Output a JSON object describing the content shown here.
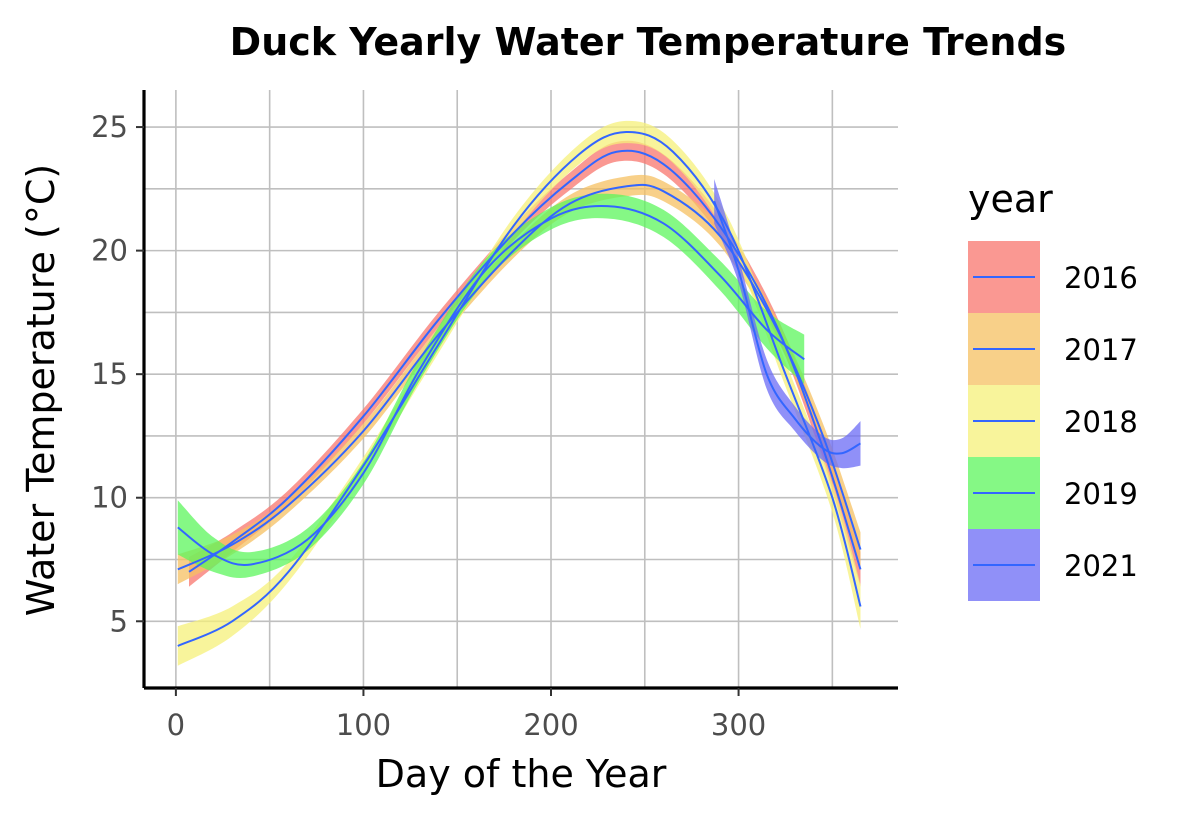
{
  "chart_data": {
    "type": "line",
    "title": "Duck Yearly Water Temperature Trends",
    "xlabel": "Day of the Year",
    "ylabel": "Water Temperature (°C)",
    "xlim": [
      -17,
      385
    ],
    "ylim": [
      2.3,
      26.5
    ],
    "x_ticks": [
      0,
      100,
      200,
      300
    ],
    "y_ticks": [
      5,
      10,
      15,
      20,
      25
    ],
    "grid": true,
    "legend_title": "year",
    "legend_position": "right",
    "line_color": "#3366ff",
    "series": [
      {
        "name": "2016",
        "fill": "#f8766d",
        "x": [
          7,
          30,
          60,
          100,
          140,
          180,
          210,
          235,
          260,
          290,
          320,
          345,
          365
        ],
        "y": [
          7.0,
          8.2,
          10.0,
          13.3,
          17.2,
          20.7,
          22.8,
          24.0,
          23.5,
          21.0,
          17.0,
          12.0,
          7.1
        ],
        "band": [
          0.6,
          0.4,
          0.3,
          0.3,
          0.3,
          0.3,
          0.35,
          0.4,
          0.4,
          0.4,
          0.4,
          0.5,
          0.7
        ]
      },
      {
        "name": "2017",
        "fill": "#f5c061",
        "x": [
          1,
          30,
          60,
          100,
          140,
          180,
          210,
          240,
          260,
          290,
          320,
          345,
          365
        ],
        "y": [
          7.1,
          8.1,
          9.7,
          12.7,
          16.6,
          20.0,
          21.9,
          22.6,
          22.4,
          20.6,
          16.9,
          12.5,
          7.9
        ],
        "band": [
          0.6,
          0.4,
          0.3,
          0.3,
          0.3,
          0.3,
          0.35,
          0.4,
          0.4,
          0.4,
          0.4,
          0.5,
          0.7
        ]
      },
      {
        "name": "2018",
        "fill": "#f5f07a",
        "x": [
          1,
          30,
          60,
          100,
          140,
          180,
          215,
          240,
          265,
          295,
          325,
          350,
          365
        ],
        "y": [
          4.0,
          5.0,
          7.0,
          11.3,
          16.2,
          21.0,
          23.9,
          24.8,
          24.0,
          20.8,
          15.0,
          10.0,
          5.6
        ],
        "band": [
          0.8,
          0.6,
          0.4,
          0.35,
          0.35,
          0.35,
          0.4,
          0.45,
          0.45,
          0.45,
          0.5,
          0.6,
          0.9
        ]
      },
      {
        "name": "2019",
        "fill": "#5cf55c",
        "x": [
          1,
          20,
          40,
          70,
          100,
          130,
          165,
          200,
          230,
          260,
          290,
          315,
          335
        ],
        "y": [
          8.8,
          7.7,
          7.3,
          8.3,
          11.0,
          15.2,
          19.2,
          21.3,
          21.8,
          21.1,
          19.0,
          16.8,
          15.6
        ],
        "band": [
          1.1,
          0.7,
          0.5,
          0.45,
          0.45,
          0.45,
          0.45,
          0.45,
          0.5,
          0.55,
          0.6,
          0.75,
          1.0
        ]
      },
      {
        "name": "2021",
        "fill": "#6b6bf5",
        "x": [
          287,
          300,
          315,
          330,
          345,
          355,
          365
        ],
        "y": [
          22.0,
          19.2,
          15.0,
          13.2,
          12.0,
          11.8,
          12.2
        ],
        "band": [
          0.9,
          0.5,
          0.6,
          0.5,
          0.5,
          0.6,
          0.9
        ]
      }
    ]
  }
}
